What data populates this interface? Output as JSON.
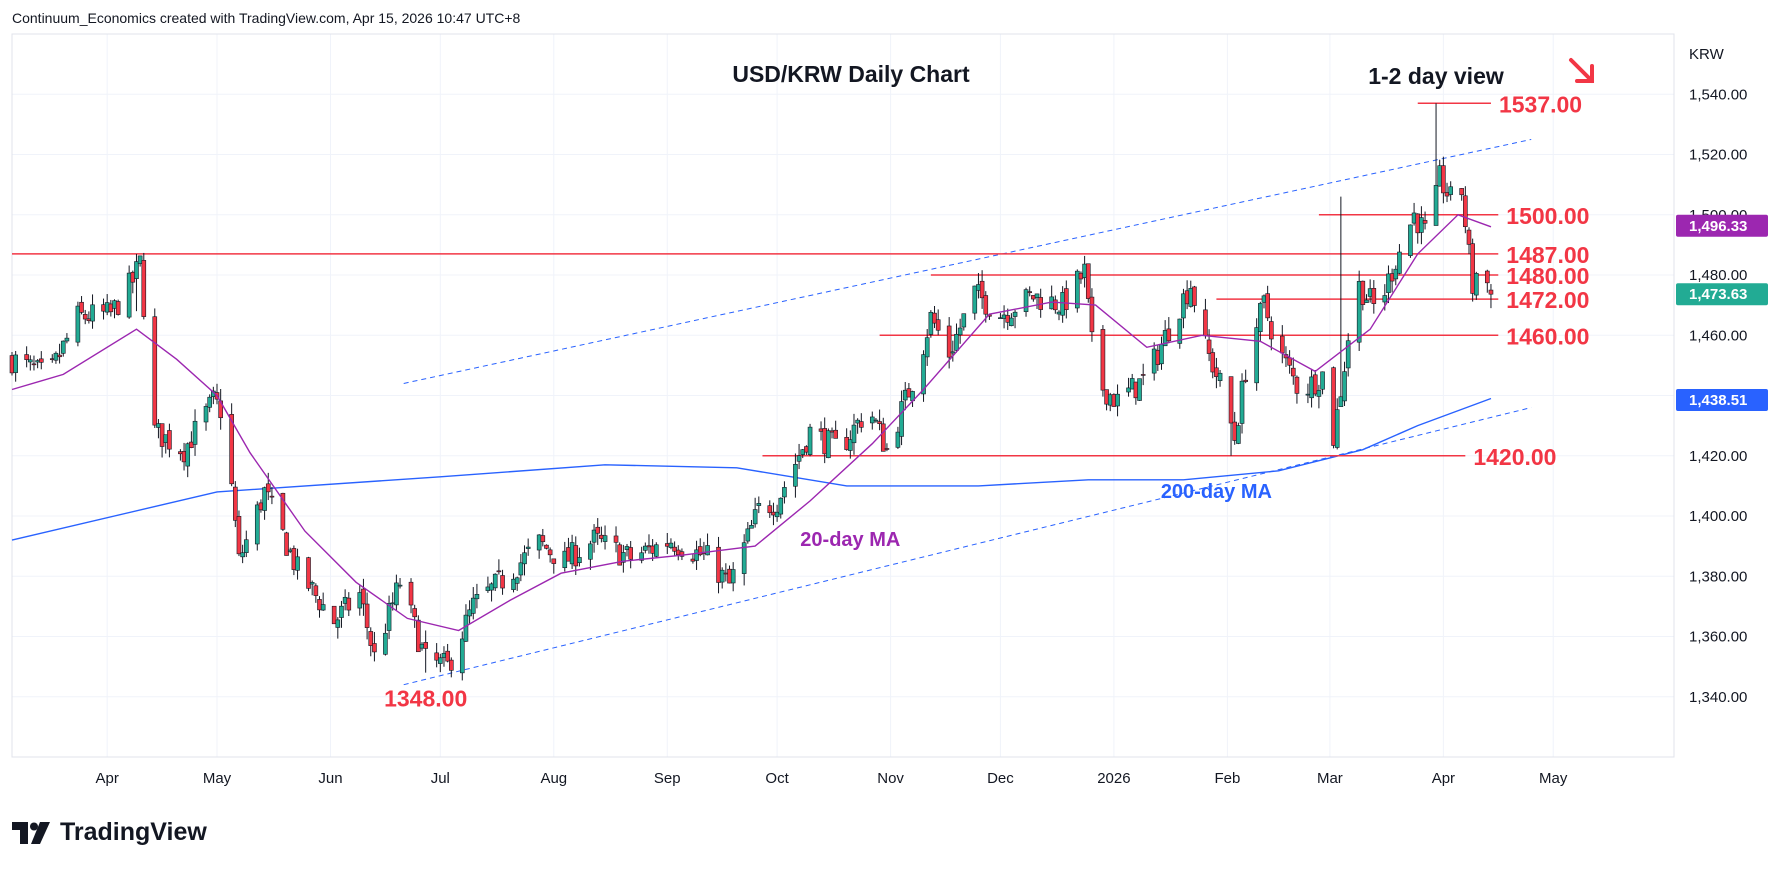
{
  "header": {
    "credit": "Continuum_Economics created with TradingView.com, Apr 15, 2026 10:47 UTC+8"
  },
  "footer": {
    "brand": "TradingView",
    "logo_icon": "tradingview-logo-icon"
  },
  "colors": {
    "up": "#22ab94",
    "down": "#f23645",
    "level": "#f23645",
    "ma20": "#9c27b0",
    "ma200": "#2962ff",
    "channel": "#2962ff",
    "grid": "#f0f3fa",
    "axis": "#131722"
  },
  "chart_data": {
    "type": "candlestick",
    "title": "USD/KRW Daily Chart",
    "view_label": "1-2 day view",
    "view_direction": "down",
    "currency_label": "KRW",
    "ylim": [
      1320,
      1560
    ],
    "y_ticks": [
      "1,340.00",
      "1,360.00",
      "1,380.00",
      "1,400.00",
      "1,420.00",
      "1,440.00",
      "1,460.00",
      "1,480.00",
      "1,500.00",
      "1,520.00",
      "1,540.00"
    ],
    "y_tick_values": [
      1340,
      1360,
      1380,
      1400,
      1420,
      1440,
      1460,
      1480,
      1500,
      1520,
      1540
    ],
    "x_ticks": [
      "Apr",
      "May",
      "Jun",
      "Jul",
      "Aug",
      "Sep",
      "Oct",
      "Nov",
      "Dec",
      "2026",
      "Feb",
      "Mar",
      "Apr",
      "May"
    ],
    "x_tick_dates": [
      "2025-04-01",
      "2025-05-01",
      "2025-06-01",
      "2025-07-01",
      "2025-08-01",
      "2025-09-01",
      "2025-10-01",
      "2025-11-01",
      "2025-12-01",
      "2026-01-01",
      "2026-02-01",
      "2026-03-01",
      "2026-04-01",
      "2026-05-01"
    ],
    "x_range": [
      "2025-03-06",
      "2026-06-03"
    ],
    "price_badges": [
      {
        "label": "1,496.33",
        "value": 1496.33,
        "color": "#9c27b0",
        "series": "20-day MA"
      },
      {
        "label": "1,473.63",
        "value": 1473.63,
        "color": "#22ab94",
        "series": "Last price"
      },
      {
        "label": "1,438.51",
        "value": 1438.51,
        "color": "#2962ff",
        "series": "200-day MA"
      }
    ],
    "levels": [
      {
        "label": "1537.00",
        "value": 1537,
        "from": "2026-03-25",
        "to": "2026-04-14"
      },
      {
        "label": "1500.00",
        "value": 1500,
        "from": "2026-02-26",
        "to": "2026-04-16"
      },
      {
        "label": "1487.00",
        "value": 1487,
        "from": "2025-03-06",
        "to": "2026-04-16"
      },
      {
        "label": "1480.00",
        "value": 1480,
        "from": "2025-11-12",
        "to": "2026-04-16"
      },
      {
        "label": "1472.00",
        "value": 1472,
        "from": "2026-01-29",
        "to": "2026-04-16"
      },
      {
        "label": "1460.00",
        "value": 1460,
        "from": "2025-10-29",
        "to": "2026-04-16"
      },
      {
        "label": "1420.00",
        "value": 1420,
        "from": "2025-09-27",
        "to": "2026-04-07"
      }
    ],
    "low_label": {
      "label": "1348.00",
      "value": 1348,
      "date": "2025-06-27"
    },
    "channel": {
      "upper": [
        {
          "date": "2025-06-21",
          "value": 1444
        },
        {
          "date": "2026-04-25",
          "value": 1525
        }
      ],
      "lower": [
        {
          "date": "2025-06-21",
          "value": 1344
        },
        {
          "date": "2026-04-25",
          "value": 1436
        }
      ]
    },
    "ma_labels": [
      {
        "label": "20-day MA",
        "date": "2025-10-21",
        "value": 1390,
        "color": "#9c27b0"
      },
      {
        "label": "200-day MA",
        "date": "2026-01-29",
        "value": 1406,
        "color": "#2962ff"
      }
    ],
    "ma20": [
      {
        "date": "2025-03-06",
        "value": 1442
      },
      {
        "date": "2025-03-20",
        "value": 1447
      },
      {
        "date": "2025-04-09",
        "value": 1462
      },
      {
        "date": "2025-04-20",
        "value": 1452
      },
      {
        "date": "2025-05-01",
        "value": 1440
      },
      {
        "date": "2025-05-10",
        "value": 1421
      },
      {
        "date": "2025-05-25",
        "value": 1395
      },
      {
        "date": "2025-06-08",
        "value": 1378
      },
      {
        "date": "2025-06-22",
        "value": 1366
      },
      {
        "date": "2025-07-06",
        "value": 1362
      },
      {
        "date": "2025-07-20",
        "value": 1372
      },
      {
        "date": "2025-08-03",
        "value": 1381
      },
      {
        "date": "2025-08-20",
        "value": 1385
      },
      {
        "date": "2025-09-05",
        "value": 1387
      },
      {
        "date": "2025-09-25",
        "value": 1390
      },
      {
        "date": "2025-10-10",
        "value": 1405
      },
      {
        "date": "2025-10-27",
        "value": 1424
      },
      {
        "date": "2025-11-10",
        "value": 1442
      },
      {
        "date": "2025-11-28",
        "value": 1467
      },
      {
        "date": "2025-12-15",
        "value": 1471
      },
      {
        "date": "2025-12-27",
        "value": 1470
      },
      {
        "date": "2026-01-10",
        "value": 1456
      },
      {
        "date": "2026-01-25",
        "value": 1460
      },
      {
        "date": "2026-02-10",
        "value": 1458
      },
      {
        "date": "2026-02-25",
        "value": 1448
      },
      {
        "date": "2026-03-12",
        "value": 1462
      },
      {
        "date": "2026-03-25",
        "value": 1487
      },
      {
        "date": "2026-04-05",
        "value": 1500
      },
      {
        "date": "2026-04-14",
        "value": 1496
      }
    ],
    "ma200": [
      {
        "date": "2025-03-06",
        "value": 1392
      },
      {
        "date": "2025-05-01",
        "value": 1408
      },
      {
        "date": "2025-07-01",
        "value": 1413
      },
      {
        "date": "2025-08-15",
        "value": 1417
      },
      {
        "date": "2025-09-20",
        "value": 1416
      },
      {
        "date": "2025-10-20",
        "value": 1410
      },
      {
        "date": "2025-11-25",
        "value": 1410
      },
      {
        "date": "2025-12-25",
        "value": 1412
      },
      {
        "date": "2026-01-20",
        "value": 1412
      },
      {
        "date": "2026-02-15",
        "value": 1415
      },
      {
        "date": "2026-03-10",
        "value": 1422
      },
      {
        "date": "2026-03-25",
        "value": 1430
      },
      {
        "date": "2026-04-14",
        "value": 1439
      }
    ],
    "price_path": [
      {
        "date": "2025-03-06",
        "value": 1452
      },
      {
        "date": "2025-03-16",
        "value": 1446
      },
      {
        "date": "2025-03-24",
        "value": 1466
      },
      {
        "date": "2025-04-02",
        "value": 1467
      },
      {
        "date": "2025-04-08",
        "value": 1478
      },
      {
        "date": "2025-04-10",
        "value": 1484
      },
      {
        "date": "2025-04-14",
        "value": 1428
      },
      {
        "date": "2025-04-22",
        "value": 1422
      },
      {
        "date": "2025-04-30",
        "value": 1438
      },
      {
        "date": "2025-05-03",
        "value": 1434
      },
      {
        "date": "2025-05-07",
        "value": 1385
      },
      {
        "date": "2025-05-14",
        "value": 1408
      },
      {
        "date": "2025-05-23",
        "value": 1382
      },
      {
        "date": "2025-06-02",
        "value": 1365
      },
      {
        "date": "2025-06-09",
        "value": 1374
      },
      {
        "date": "2025-06-13",
        "value": 1353
      },
      {
        "date": "2025-06-20",
        "value": 1378
      },
      {
        "date": "2025-06-27",
        "value": 1352
      },
      {
        "date": "2025-07-03",
        "value": 1350
      },
      {
        "date": "2025-07-10",
        "value": 1370
      },
      {
        "date": "2025-07-20",
        "value": 1381
      },
      {
        "date": "2025-07-28",
        "value": 1391
      },
      {
        "date": "2025-08-04",
        "value": 1385
      },
      {
        "date": "2025-08-12",
        "value": 1392
      },
      {
        "date": "2025-08-22",
        "value": 1386
      },
      {
        "date": "2025-09-02",
        "value": 1392
      },
      {
        "date": "2025-09-12",
        "value": 1386
      },
      {
        "date": "2025-09-18",
        "value": 1377
      },
      {
        "date": "2025-09-26",
        "value": 1402
      },
      {
        "date": "2025-10-01",
        "value": 1405
      },
      {
        "date": "2025-10-10",
        "value": 1428
      },
      {
        "date": "2025-10-18",
        "value": 1422
      },
      {
        "date": "2025-10-26",
        "value": 1436
      },
      {
        "date": "2025-10-31",
        "value": 1422
      },
      {
        "date": "2025-11-08",
        "value": 1448
      },
      {
        "date": "2025-11-12",
        "value": 1466
      },
      {
        "date": "2025-11-17",
        "value": 1454
      },
      {
        "date": "2025-11-24",
        "value": 1474
      },
      {
        "date": "2025-12-01",
        "value": 1467
      },
      {
        "date": "2025-12-10",
        "value": 1473
      },
      {
        "date": "2025-12-18",
        "value": 1470
      },
      {
        "date": "2025-12-24",
        "value": 1481
      },
      {
        "date": "2025-12-27",
        "value": 1445
      },
      {
        "date": "2026-01-02",
        "value": 1438
      },
      {
        "date": "2026-01-10",
        "value": 1446
      },
      {
        "date": "2026-01-17",
        "value": 1465
      },
      {
        "date": "2026-01-22",
        "value": 1477
      },
      {
        "date": "2026-01-26",
        "value": 1456
      },
      {
        "date": "2026-01-30",
        "value": 1444
      },
      {
        "date": "2026-02-03",
        "value": 1426
      },
      {
        "date": "2026-02-07",
        "value": 1456
      },
      {
        "date": "2026-02-11",
        "value": 1470
      },
      {
        "date": "2026-02-15",
        "value": 1455
      },
      {
        "date": "2026-02-21",
        "value": 1441
      },
      {
        "date": "2026-02-27",
        "value": 1447
      },
      {
        "date": "2026-03-02",
        "value": 1426
      },
      {
        "date": "2026-03-05",
        "value": 1450
      },
      {
        "date": "2026-03-08",
        "value": 1478
      },
      {
        "date": "2026-03-14",
        "value": 1468
      },
      {
        "date": "2026-03-19",
        "value": 1485
      },
      {
        "date": "2026-03-24",
        "value": 1500
      },
      {
        "date": "2026-03-28",
        "value": 1492
      },
      {
        "date": "2026-03-31",
        "value": 1512
      },
      {
        "date": "2026-04-03",
        "value": 1505
      },
      {
        "date": "2026-04-06",
        "value": 1508
      },
      {
        "date": "2026-04-09",
        "value": 1476
      },
      {
        "date": "2026-04-11",
        "value": 1485
      },
      {
        "date": "2026-04-14",
        "value": 1473.63
      }
    ],
    "extremes": [
      {
        "date": "2025-04-09",
        "high": 1487,
        "low": 1468
      },
      {
        "date": "2025-06-27",
        "high": 1362,
        "low": 1348
      },
      {
        "date": "2026-03-30",
        "high": 1537,
        "low": 1504
      },
      {
        "date": "2026-03-01",
        "high": 1444,
        "low": 1420
      },
      {
        "date": "2026-03-04",
        "high": 1506,
        "low": 1450
      },
      {
        "date": "2026-02-02",
        "high": 1440,
        "low": 1420
      }
    ]
  }
}
